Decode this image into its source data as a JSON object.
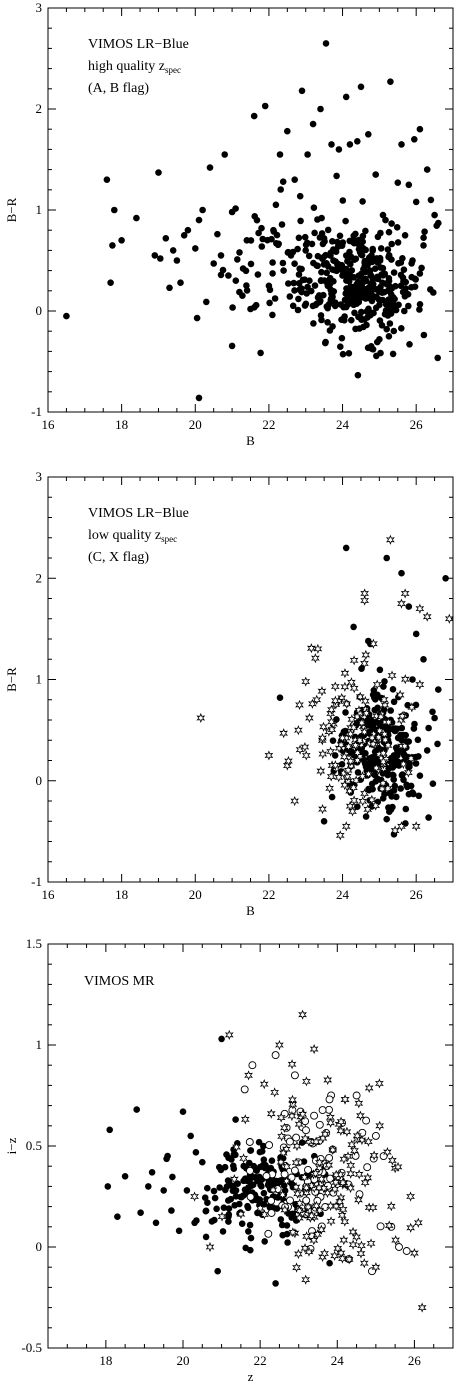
{
  "colors": {
    "marker": "#000000",
    "background": "#ffffff",
    "axis": "#000000"
  },
  "chart_data": [
    {
      "type": "scatter",
      "xlabel": "B",
      "ylabel": "B−R",
      "xlim": [
        16,
        27
      ],
      "ylim": [
        -1,
        3
      ],
      "xticks": [
        16,
        18,
        20,
        22,
        24,
        26
      ],
      "yticks": [
        -1,
        0,
        1,
        2,
        3
      ],
      "annotation": [
        "VIMOS LR−Blue",
        "high quality z",
        "spec",
        "(A, B flag)"
      ],
      "series": [
        {
          "marker": "filled-circle",
          "points": [
            [
              16.5,
              -0.05
            ],
            [
              17.6,
              1.3
            ],
            [
              17.7,
              0.28
            ],
            [
              17.8,
              1.0
            ],
            [
              17.75,
              0.65
            ],
            [
              18.0,
              0.7
            ],
            [
              18.4,
              0.92
            ],
            [
              18.9,
              0.55
            ],
            [
              19.0,
              1.37
            ],
            [
              19.05,
              0.52
            ],
            [
              19.2,
              0.72
            ],
            [
              19.3,
              0.23
            ],
            [
              19.4,
              0.6
            ],
            [
              19.5,
              0.5
            ],
            [
              19.6,
              0.28
            ],
            [
              19.7,
              0.75
            ],
            [
              19.8,
              0.8
            ],
            [
              20.0,
              0.62
            ],
            [
              20.05,
              -0.07
            ],
            [
              20.1,
              0.9
            ],
            [
              20.2,
              1.0
            ],
            [
              20.1,
              -0.86
            ],
            [
              20.3,
              0.09
            ],
            [
              20.4,
              1.42
            ],
            [
              20.5,
              0.47
            ],
            [
              20.6,
              0.76
            ],
            [
              20.7,
              0.55
            ],
            [
              20.8,
              1.55
            ],
            [
              20.9,
              0.35
            ],
            [
              21.0,
              0.98
            ],
            [
              21.1,
              0.3
            ],
            [
              21.2,
              0.58
            ],
            [
              21.3,
              0.42
            ],
            [
              21.4,
              0.7
            ],
            [
              21.5,
              0.02
            ],
            [
              21.6,
              1.93
            ],
            [
              21.7,
              0.36
            ],
            [
              21.8,
              0.82
            ],
            [
              21.9,
              2.03
            ],
            [
              22.0,
              0.25
            ],
            [
              22.1,
              0.48
            ],
            [
              22.2,
              0.67
            ],
            [
              22.3,
              1.55
            ],
            [
              22.4,
              0.4
            ],
            [
              22.5,
              1.78
            ],
            [
              22.6,
              0.55
            ],
            [
              22.7,
              1.3
            ],
            [
              22.8,
              0.12
            ],
            [
              22.9,
              2.18
            ],
            [
              23.0,
              0.6
            ],
            [
              23.05,
              1.55
            ],
            [
              23.1,
              0.3
            ],
            [
              23.2,
              1.85
            ],
            [
              23.3,
              0.45
            ],
            [
              23.4,
              2.0
            ],
            [
              23.5,
              0.72
            ],
            [
              23.55,
              2.65
            ],
            [
              23.6,
              0.25
            ],
            [
              23.7,
              1.65
            ],
            [
              23.8,
              0.05
            ],
            [
              23.9,
              1.6
            ],
            [
              24.0,
              0.35
            ],
            [
              24.1,
              2.12
            ],
            [
              24.15,
              0.52
            ],
            [
              24.2,
              1.65
            ],
            [
              24.3,
              0.18
            ],
            [
              24.4,
              1.68
            ],
            [
              24.5,
              2.22
            ],
            [
              24.6,
              0.48
            ],
            [
              24.7,
              1.75
            ],
            [
              24.8,
              0.1
            ],
            [
              24.9,
              1.35
            ],
            [
              25.0,
              -0.28
            ],
            [
              25.05,
              0.62
            ],
            [
              25.1,
              0.95
            ],
            [
              25.2,
              -0.18
            ],
            [
              25.3,
              2.27
            ],
            [
              25.4,
              0.38
            ],
            [
              25.5,
              1.27
            ],
            [
              25.6,
              1.65
            ],
            [
              25.7,
              0.75
            ],
            [
              25.8,
              1.25
            ],
            [
              25.9,
              0.5
            ],
            [
              25.95,
              1.7
            ],
            [
              26.0,
              1.08
            ],
            [
              26.1,
              1.8
            ],
            [
              26.2,
              0.65
            ],
            [
              26.3,
              1.4
            ],
            [
              26.4,
              1.1
            ],
            [
              26.5,
              0.95
            ],
            [
              26.6,
              0.87
            ]
          ],
          "clusters": [
            {
              "cx": 24.5,
              "cy": 0.25,
              "sx": 0.85,
              "sy": 0.3,
              "n": 320
            },
            {
              "cx": 22.8,
              "cy": 0.5,
              "sx": 1.1,
              "sy": 0.35,
              "n": 90
            }
          ]
        }
      ]
    },
    {
      "type": "scatter",
      "xlabel": "B",
      "ylabel": "B−R",
      "xlim": [
        16,
        27
      ],
      "ylim": [
        -1,
        3
      ],
      "xticks": [
        16,
        18,
        20,
        22,
        24,
        26
      ],
      "yticks": [
        -1,
        0,
        1,
        2,
        3
      ],
      "annotation": [
        "VIMOS LR−Blue",
        "low quality z",
        "spec",
        "(C, X flag)"
      ],
      "series": [
        {
          "marker": "filled-circle",
          "points": [
            [
              22.3,
              0.82
            ],
            [
              23.5,
              -0.4
            ],
            [
              24.1,
              2.3
            ],
            [
              24.3,
              1.52
            ],
            [
              24.7,
              1.38
            ],
            [
              25.2,
              2.2
            ],
            [
              25.4,
              0.78
            ],
            [
              25.6,
              2.05
            ],
            [
              25.8,
              1.72
            ],
            [
              26.0,
              1.45
            ],
            [
              26.2,
              1.2
            ],
            [
              26.5,
              0.62
            ],
            [
              26.6,
              0.9
            ],
            [
              26.8,
              2.0
            ],
            [
              25.2,
              -0.38
            ],
            [
              25.9,
              1.0
            ],
            [
              26.3,
              0.3
            ],
            [
              23.8,
              0.25
            ],
            [
              24.2,
              -0.1
            ],
            [
              26.1,
              0.05
            ]
          ],
          "clusters": [
            {
              "cx": 25.0,
              "cy": 0.3,
              "sx": 0.55,
              "sy": 0.3,
              "n": 260
            }
          ]
        },
        {
          "marker": "open-star",
          "points": [
            [
              20.15,
              0.62
            ],
            [
              22.0,
              0.25
            ],
            [
              22.7,
              -0.2
            ],
            [
              22.5,
              0.15
            ],
            [
              23.0,
              0.98
            ],
            [
              23.1,
              0.62
            ],
            [
              24.1,
              -0.45
            ],
            [
              24.6,
              1.85
            ],
            [
              24.6,
              1.78
            ],
            [
              25.3,
              2.38
            ],
            [
              25.6,
              1.75
            ],
            [
              25.7,
              1.85
            ],
            [
              26.1,
              1.7
            ],
            [
              26.3,
              1.62
            ],
            [
              26.9,
              1.6
            ],
            [
              25.6,
              -0.45
            ],
            [
              26.0,
              -0.45
            ],
            [
              26.1,
              0.95
            ],
            [
              22.8,
              0.5
            ],
            [
              23.3,
              0.8
            ]
          ],
          "clusters": [
            {
              "cx": 24.4,
              "cy": 0.4,
              "sx": 0.75,
              "sy": 0.35,
              "n": 150
            }
          ]
        }
      ]
    },
    {
      "type": "scatter",
      "xlabel": "z",
      "ylabel": "i−z",
      "xlim": [
        16.5,
        27
      ],
      "ylim": [
        -0.5,
        1.5
      ],
      "xticks": [
        18,
        20,
        22,
        24,
        26
      ],
      "yticks": [
        -0.5,
        0,
        0.5,
        1,
        1.5
      ],
      "annotation": [
        "VIMOS MR"
      ],
      "series": [
        {
          "marker": "filled-circle",
          "points": [
            [
              18.1,
              0.58
            ],
            [
              18.05,
              0.3
            ],
            [
              18.3,
              0.15
            ],
            [
              18.5,
              0.35
            ],
            [
              18.8,
              0.68
            ],
            [
              18.9,
              0.17
            ],
            [
              19.1,
              0.3
            ],
            [
              19.2,
              0.37
            ],
            [
              19.3,
              0.12
            ],
            [
              19.5,
              0.28
            ],
            [
              19.6,
              0.45
            ],
            [
              19.7,
              0.18
            ],
            [
              19.9,
              0.08
            ],
            [
              20.0,
              0.67
            ],
            [
              20.1,
              0.28
            ],
            [
              20.2,
              0.55
            ],
            [
              20.3,
              0.12
            ],
            [
              20.5,
              0.42
            ],
            [
              20.6,
              0.05
            ],
            [
              20.9,
              -0.12
            ],
            [
              21.0,
              1.03
            ],
            [
              22.4,
              -0.18
            ],
            [
              23.8,
              -0.08
            ]
          ],
          "clusters": [
            {
              "cx": 22.0,
              "cy": 0.28,
              "sx": 0.8,
              "sy": 0.12,
              "n": 200
            }
          ]
        },
        {
          "marker": "open-circle",
          "points": [
            [
              21.8,
              0.9
            ],
            [
              22.4,
              0.95
            ],
            [
              24.5,
              0.75
            ],
            [
              25.0,
              0.55
            ],
            [
              25.2,
              0.45
            ],
            [
              25.4,
              0.1
            ],
            [
              25.6,
              0.0
            ],
            [
              25.8,
              -0.02
            ],
            [
              24.9,
              -0.12
            ],
            [
              24.3,
              -0.06
            ],
            [
              23.4,
              0.65
            ],
            [
              22.9,
              0.85
            ],
            [
              21.6,
              0.78
            ]
          ],
          "clusters": [
            {
              "cx": 23.2,
              "cy": 0.38,
              "sx": 0.7,
              "sy": 0.18,
              "n": 90
            }
          ]
        },
        {
          "marker": "open-star",
          "points": [
            [
              20.3,
              0.25
            ],
            [
              20.7,
              -0.0
            ],
            [
              21.2,
              1.05
            ],
            [
              21.7,
              0.85
            ],
            [
              22.5,
              1.0
            ],
            [
              23.1,
              1.15
            ],
            [
              23.4,
              0.98
            ],
            [
              24.2,
              0.73
            ],
            [
              24.6,
              0.65
            ],
            [
              25.1,
              0.6
            ],
            [
              25.3,
              0.47
            ],
            [
              25.5,
              0.39
            ],
            [
              25.9,
              0.25
            ],
            [
              26.1,
              0.12
            ],
            [
              26.0,
              -0.03
            ],
            [
              26.2,
              -0.3
            ],
            [
              25.0,
              -0.1
            ],
            [
              24.7,
              -0.08
            ],
            [
              24.5,
              0.05
            ],
            [
              23.2,
              0.82
            ]
          ],
          "clusters": [
            {
              "cx": 23.5,
              "cy": 0.35,
              "sx": 0.8,
              "sy": 0.22,
              "n": 140
            }
          ]
        }
      ]
    }
  ]
}
